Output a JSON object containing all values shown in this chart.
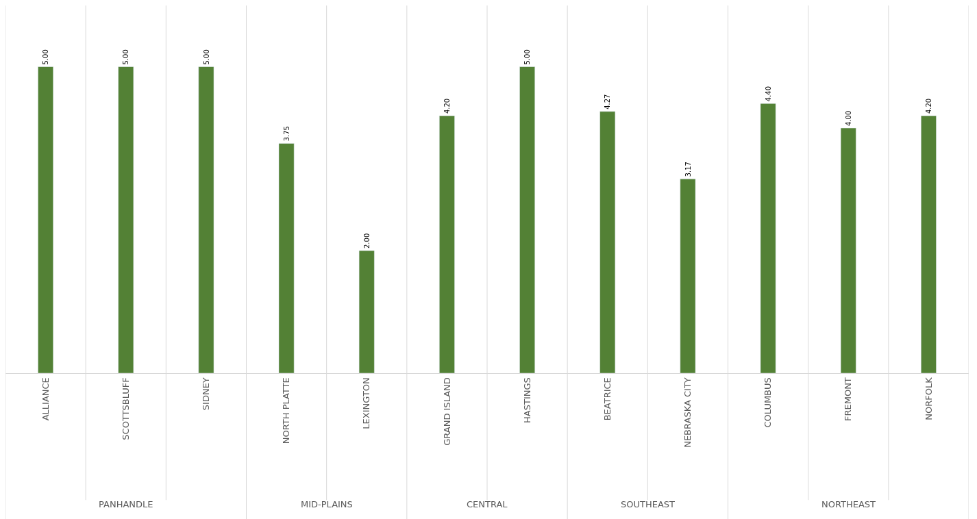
{
  "chart_data": {
    "type": "bar",
    "categories": [
      "ALLIANCE",
      "SCOTTSBLUFF",
      "SIDNEY",
      "NORTH PLATTE",
      "LEXINGTON",
      "GRAND ISLAND",
      "HASTINGS",
      "BEATRICE",
      "NEBRASKA CITY",
      "COLUMBUS",
      "FREMONT",
      "NORFOLK"
    ],
    "values": [
      5.0,
      5.0,
      5.0,
      3.75,
      2.0,
      4.2,
      5.0,
      4.27,
      3.17,
      4.4,
      4.0,
      4.2
    ],
    "value_labels": [
      "5.00",
      "5.00",
      "5.00",
      "3.75",
      "2.00",
      "4.20",
      "5.00",
      "4.27",
      "3.17",
      "4.40",
      "4.00",
      "4.20"
    ],
    "color": "#538135",
    "ylim": [
      0,
      6
    ],
    "tick_labels": "x",
    "grid": "x",
    "annotations": [
      "PANHANDLE",
      "MID-PLAINS",
      "CENTRAL",
      "SOUTHEAST",
      "NORTHEAST"
    ]
  }
}
